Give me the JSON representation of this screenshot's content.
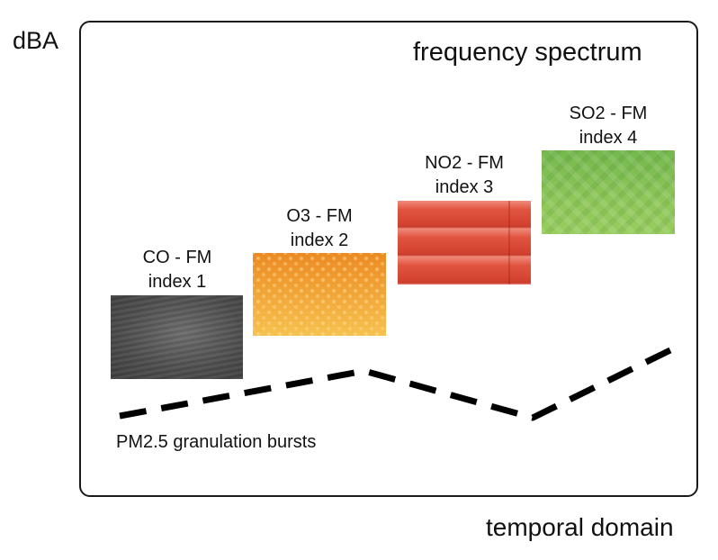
{
  "diagram": {
    "y_axis_label": "dBA",
    "x_axis_label": "temporal domain",
    "title": "frequency spectrum",
    "blocks": [
      {
        "line1": "CO - FM",
        "line2": "index 1",
        "color": "#555555"
      },
      {
        "line1": "O3 - FM",
        "line2": "index 2",
        "color": "#f2a33a"
      },
      {
        "line1": "NO2 - FM",
        "line2": "index 3",
        "color": "#dd4a36"
      },
      {
        "line1": "SO2 - FM",
        "line2": "index 4",
        "color": "#86c256"
      }
    ],
    "trend": {
      "label": "PM2.5 granulation bursts",
      "style": "dashed",
      "color": "#000000"
    }
  }
}
